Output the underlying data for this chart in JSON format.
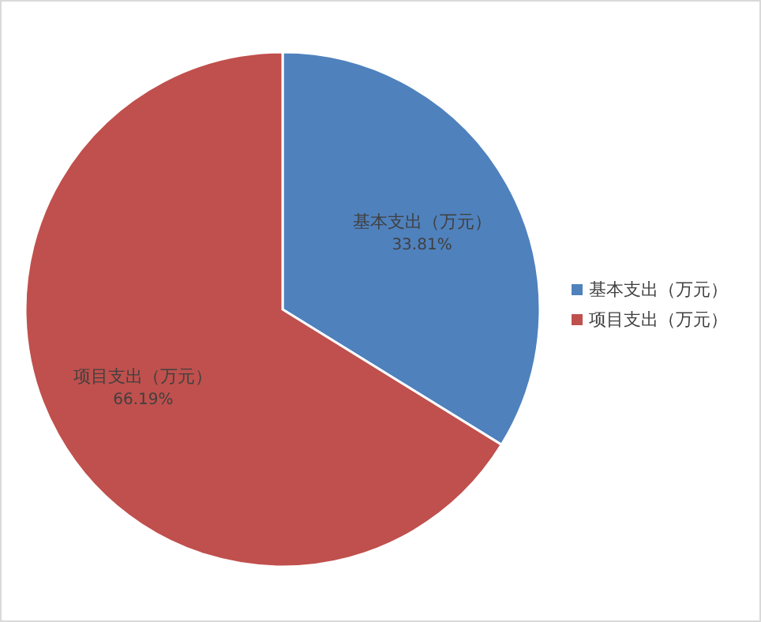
{
  "chart_data": {
    "type": "pie",
    "categories": [
      "基本支出（万元）",
      "项目支出（万元）"
    ],
    "values": [
      33.81,
      66.19
    ],
    "colors": [
      "#4f81bd",
      "#c0504d"
    ],
    "value_labels": [
      "33.81%",
      "66.19%"
    ],
    "legend": "right"
  }
}
